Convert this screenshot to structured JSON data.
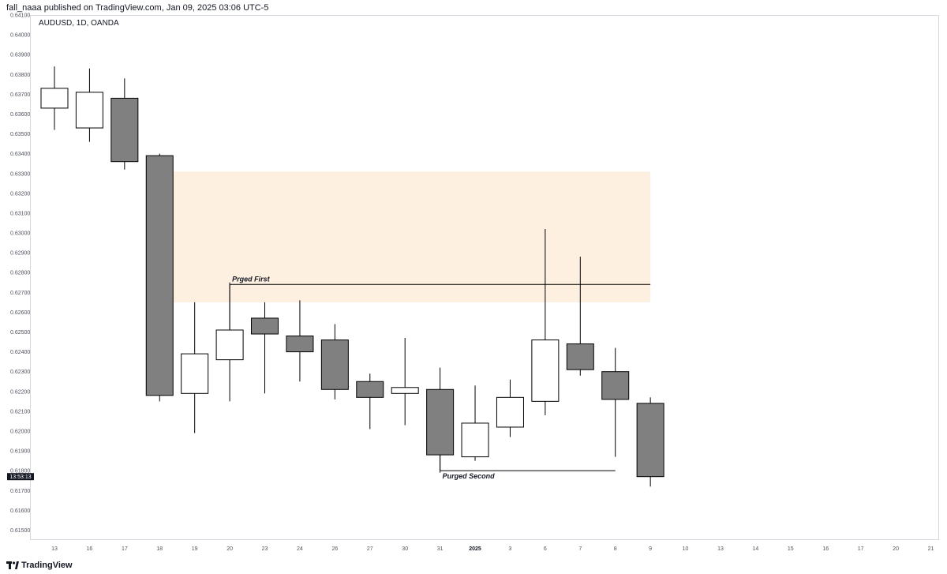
{
  "header": {
    "published_text": "fall_naaa published on TradingView.com, Jan 09, 2025 03:06 UTC-5"
  },
  "footer": {
    "brand": "TradingView"
  },
  "chart_data": {
    "type": "candlestick",
    "symbol_line": "AUDUSD, 1D, OANDA",
    "ylim": [
      0.6145,
      0.641
    ],
    "y_ticks": [
      0.615,
      0.616,
      0.617,
      0.618,
      0.619,
      0.62,
      0.621,
      0.622,
      0.623,
      0.624,
      0.625,
      0.626,
      0.627,
      0.628,
      0.629,
      0.63,
      0.631,
      0.632,
      0.633,
      0.634,
      0.635,
      0.636,
      0.637,
      0.638,
      0.639,
      0.64,
      0.641
    ],
    "y_tick_labels": [
      "0.61500",
      "0.61600",
      "0.61700",
      "0.61800",
      "0.61900",
      "0.62000",
      "0.62100",
      "0.62200",
      "0.62300",
      "0.62400",
      "0.62500",
      "0.62600",
      "0.62700",
      "0.62800",
      "0.62900",
      "0.63000",
      "0.63100",
      "0.63200",
      "0.63300",
      "0.63400",
      "0.63500",
      "0.63600",
      "0.63700",
      "0.63800",
      "0.63900",
      "0.64000",
      "0.64100"
    ],
    "x_labels": [
      "13",
      "16",
      "17",
      "18",
      "19",
      "20",
      "23",
      "24",
      "26",
      "27",
      "30",
      "31",
      "2025",
      "3",
      "6",
      "7",
      "8",
      "9",
      "10",
      "13",
      "14",
      "15",
      "16",
      "17",
      "20",
      "21"
    ],
    "x_bold_labels": [
      "2025"
    ],
    "price_label": {
      "text": "13:53:13",
      "value": 0.6177
    },
    "candles": [
      {
        "date": "13",
        "open": 0.6363,
        "high": 0.6384,
        "low": 0.6352,
        "close": 0.6373
      },
      {
        "date": "16",
        "open": 0.6353,
        "high": 0.6383,
        "low": 0.6346,
        "close": 0.6371
      },
      {
        "date": "17",
        "open": 0.6368,
        "high": 0.6378,
        "low": 0.6332,
        "close": 0.6336
      },
      {
        "date": "18",
        "open": 0.6339,
        "high": 0.634,
        "low": 0.6215,
        "close": 0.6218
      },
      {
        "date": "19",
        "open": 0.6219,
        "high": 0.6265,
        "low": 0.6199,
        "close": 0.6239
      },
      {
        "date": "20",
        "open": 0.6236,
        "high": 0.6275,
        "low": 0.6215,
        "close": 0.6251
      },
      {
        "date": "23",
        "open": 0.6257,
        "high": 0.6265,
        "low": 0.6219,
        "close": 0.6249
      },
      {
        "date": "24",
        "open": 0.6248,
        "high": 0.6266,
        "low": 0.6225,
        "close": 0.624
      },
      {
        "date": "26",
        "open": 0.6246,
        "high": 0.6254,
        "low": 0.6216,
        "close": 0.6221
      },
      {
        "date": "27",
        "open": 0.6225,
        "high": 0.6229,
        "low": 0.6201,
        "close": 0.6217
      },
      {
        "date": "30",
        "open": 0.6219,
        "high": 0.6247,
        "low": 0.6203,
        "close": 0.6222
      },
      {
        "date": "31",
        "open": 0.6221,
        "high": 0.6232,
        "low": 0.6179,
        "close": 0.6188
      },
      {
        "date": "2025",
        "open": 0.6187,
        "high": 0.6223,
        "low": 0.6185,
        "close": 0.6204
      },
      {
        "date": "3",
        "open": 0.6202,
        "high": 0.6226,
        "low": 0.6197,
        "close": 0.6217
      },
      {
        "date": "6",
        "open": 0.6215,
        "high": 0.6302,
        "low": 0.6208,
        "close": 0.6246
      },
      {
        "date": "7",
        "open": 0.6244,
        "high": 0.6288,
        "low": 0.6228,
        "close": 0.6231
      },
      {
        "date": "8",
        "open": 0.623,
        "high": 0.6242,
        "low": 0.6187,
        "close": 0.6216
      },
      {
        "date": "9",
        "open": 0.6214,
        "high": 0.6217,
        "low": 0.6172,
        "close": 0.6177
      }
    ],
    "zone": {
      "from_date": "18",
      "to_date": "9",
      "top": 0.6331,
      "bottom": 0.6265,
      "color": "#fdf0e0"
    },
    "annotations": [
      {
        "text": "Prged First",
        "price": 0.6274,
        "from_date": "20",
        "to_date": "9",
        "bracket_to": 0.6251
      },
      {
        "text": "Purged Second",
        "price": 0.618,
        "from_date": "31",
        "to_date": "8",
        "bracket_to": 0.6188
      }
    ],
    "colors": {
      "bear": "#808080",
      "bull": "#ffffff",
      "outline": "#000000",
      "line": "#000000"
    }
  }
}
